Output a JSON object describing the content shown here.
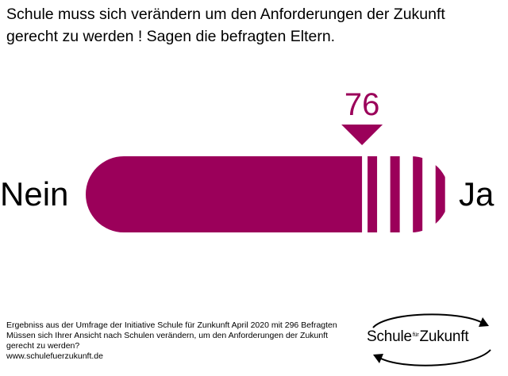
{
  "title": {
    "line1": "Schule muss sich verändern um den Anforderungen der Zukunft",
    "line2": "gerecht zu werden ! Sagen die befragten Eltern."
  },
  "chart_data": {
    "type": "bar",
    "categories": [
      "Ja"
    ],
    "values": [
      76
    ],
    "value_label": "76",
    "left_label": "Nein",
    "right_label": "Ja",
    "xlim": [
      0,
      100
    ],
    "stripes": 4
  },
  "footer": {
    "line1": "Ergebniss aus der Umfrage der Initiative Schule für Zunkunft  April 2020 mit 296 Befragten",
    "line2": "Müssen sich Ihrer Ansicht nach Schulen verändern, um den Anforderungen der Zukunft",
    "line3": "gerecht zu werden?",
    "line4": "www.schulefuerzukunft.de"
  },
  "logo": {
    "word1": "Schule",
    "small": "für",
    "word2": "Zukunft"
  },
  "colors": {
    "accent": "#9b005a",
    "text": "#000000"
  }
}
